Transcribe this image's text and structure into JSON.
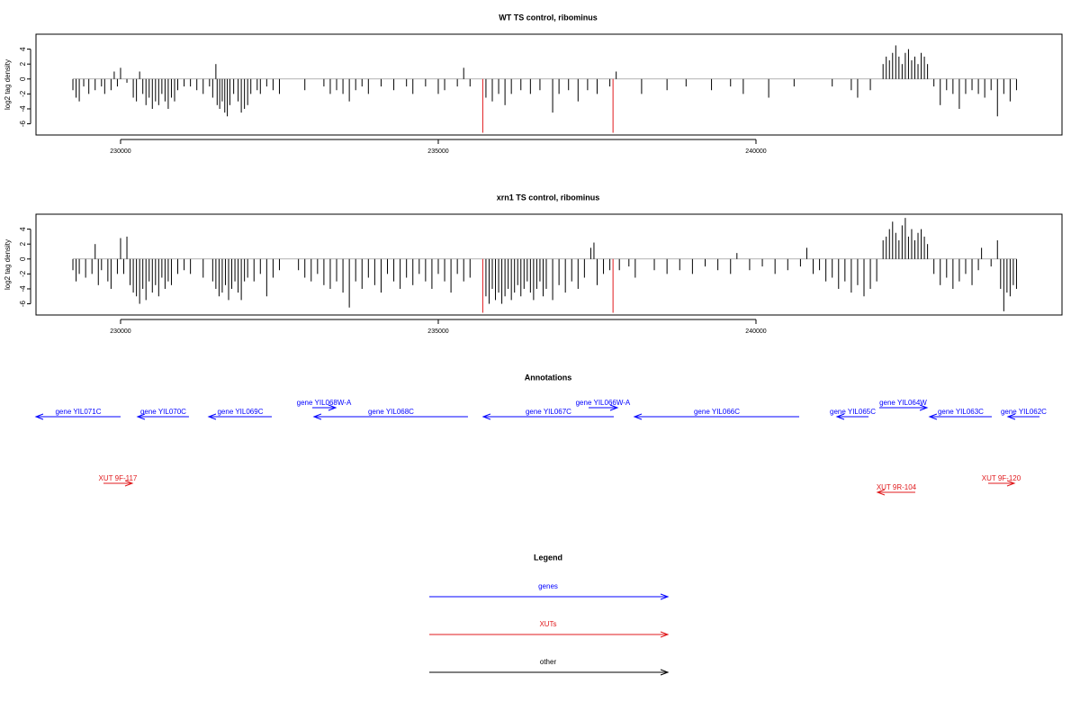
{
  "chart_data": [
    {
      "type": "bar",
      "title": "WT TS control, ribominus",
      "y_label": "log2 tag density",
      "xlim": [
        228669,
        244816
      ],
      "ylim": [
        -7.5,
        6
      ],
      "xticks": [
        230000,
        235000,
        240000
      ],
      "yticks": [
        -6,
        -4,
        -2,
        0,
        2,
        4
      ],
      "series": [
        {
          "color": "#000000",
          "x": [
            229250,
            229300,
            229350,
            229420,
            229500,
            229600,
            229700,
            229750,
            229850,
            229900,
            229950,
            230000,
            230100,
            230200,
            230250,
            230300,
            230350,
            230400,
            230450,
            230500,
            230550,
            230600,
            230650,
            230700,
            230750,
            230800,
            230850,
            230900,
            231000,
            231100,
            231200,
            231300,
            231400,
            231450,
            231500,
            231520,
            231560,
            231600,
            231640,
            231680,
            231720,
            231780,
            231850,
            231900,
            231950,
            232000,
            232050,
            232150,
            232200,
            232300,
            232400,
            232500,
            232900,
            233200,
            233300,
            233400,
            233500,
            233600,
            233700,
            233800,
            233900,
            234100,
            234300,
            234500,
            234600,
            234800,
            235000,
            235100,
            235300,
            235400,
            235500,
            235750,
            235850,
            235950,
            236050,
            236150,
            236300,
            236450,
            236600,
            236800,
            236900,
            237050,
            237200,
            237350,
            237500,
            237700,
            237800,
            238200,
            238600,
            238900,
            239300,
            239600,
            239800,
            240200,
            240600,
            241200,
            241500,
            241600,
            241800,
            242000,
            242050,
            242100,
            242150,
            242200,
            242250,
            242300,
            242350,
            242400,
            242450,
            242500,
            242550,
            242600,
            242650,
            242700,
            242800,
            242900,
            243000,
            243100,
            243200,
            243300,
            243400,
            243500,
            243600,
            243700,
            243800,
            243900,
            244000,
            244100
          ],
          "values": [
            -1.5,
            -2.5,
            -3,
            -1,
            -2,
            -1.5,
            -1,
            -2,
            -1.5,
            1,
            -1,
            1.5,
            -0.5,
            -2.5,
            -3,
            1,
            -2,
            -3.5,
            -2.5,
            -4,
            -3,
            -3.5,
            -2,
            -3,
            -4,
            -2.5,
            -3,
            -1.5,
            -1,
            -1,
            -1.5,
            -2,
            -1,
            -2.5,
            2,
            -3.5,
            -4,
            -3,
            -4.5,
            -5,
            -3.5,
            -2,
            -3,
            -4.5,
            -4,
            -3.5,
            -2,
            -1.5,
            -2,
            -1,
            -1.5,
            -2,
            -1.5,
            -1,
            -2,
            -1.5,
            -2,
            -3,
            -1.5,
            -1,
            -2,
            -1,
            -1.5,
            -1,
            -2,
            -1,
            -2,
            -1.5,
            -1,
            1.5,
            -1,
            -2.5,
            -3,
            -2,
            -3.5,
            -2,
            -1.5,
            -2,
            -1.5,
            -4.5,
            -2,
            -1.5,
            -3,
            -1.5,
            -2,
            -1,
            1,
            -2,
            -1.5,
            -1,
            -1.5,
            -1,
            -2,
            -2.5,
            -1,
            -1,
            -1.5,
            -2.5,
            -1.5,
            2,
            3,
            2.5,
            3.5,
            4.5,
            3,
            2,
            3.5,
            4,
            2.5,
            3,
            2,
            3.5,
            3,
            2,
            -1,
            -3.5,
            -1.5,
            -2,
            -4,
            -2,
            -1.5,
            -2,
            -2.5,
            -1.5,
            -5,
            -2,
            -3,
            -1.5
          ]
        },
        {
          "color": "#e0191c",
          "x": [
            235700,
            237750
          ],
          "values": [
            -7.2,
            -7.2
          ]
        }
      ]
    },
    {
      "type": "bar",
      "title": "xrn1 TS control, ribominus",
      "y_label": "log2 tag density",
      "xlim": [
        228669,
        244816
      ],
      "ylim": [
        -7.5,
        6
      ],
      "xticks": [
        230000,
        235000,
        240000
      ],
      "yticks": [
        -6,
        -4,
        -2,
        0,
        2,
        4
      ],
      "series": [
        {
          "color": "#000000",
          "x": [
            229250,
            229300,
            229350,
            229450,
            229550,
            229600,
            229650,
            229700,
            229800,
            229850,
            229950,
            230000,
            230050,
            230100,
            230150,
            230200,
            230250,
            230300,
            230350,
            230400,
            230450,
            230500,
            230550,
            230600,
            230650,
            230700,
            230750,
            230800,
            230900,
            231000,
            231100,
            231300,
            231450,
            231500,
            231550,
            231600,
            231650,
            231700,
            231750,
            231800,
            231850,
            231900,
            231950,
            232000,
            232100,
            232200,
            232300,
            232400,
            232500,
            232800,
            232900,
            233000,
            233100,
            233200,
            233300,
            233400,
            233500,
            233600,
            233700,
            233800,
            233900,
            234000,
            234100,
            234200,
            234300,
            234400,
            234500,
            234600,
            234700,
            234800,
            234900,
            235000,
            235100,
            235200,
            235300,
            235400,
            235500,
            235750,
            235800,
            235850,
            235900,
            235950,
            236000,
            236050,
            236100,
            236150,
            236200,
            236250,
            236300,
            236350,
            236400,
            236450,
            236500,
            236550,
            236600,
            236650,
            236700,
            236800,
            236900,
            237000,
            237100,
            237200,
            237300,
            237400,
            237450,
            237500,
            237600,
            237700,
            237850,
            238000,
            238100,
            238400,
            238600,
            238800,
            239000,
            239200,
            239400,
            239600,
            239700,
            239900,
            240100,
            240300,
            240500,
            240700,
            240800,
            240900,
            241000,
            241100,
            241200,
            241300,
            241400,
            241500,
            241600,
            241700,
            241800,
            241900,
            242000,
            242050,
            242100,
            242150,
            242200,
            242250,
            242300,
            242350,
            242400,
            242450,
            242500,
            242550,
            242600,
            242650,
            242700,
            242800,
            242900,
            243000,
            243100,
            243200,
            243300,
            243400,
            243500,
            243550,
            243700,
            243800,
            243850,
            243900,
            243950,
            244000,
            244050,
            244100
          ],
          "values": [
            -1.5,
            -3,
            -2,
            -2.5,
            -2,
            2,
            -3.5,
            -1.5,
            -3,
            -4,
            -2,
            2.8,
            -2,
            3,
            -3.5,
            -4.5,
            -5,
            -6,
            -4,
            -5.5,
            -3,
            -4.5,
            -3.5,
            -5,
            -2.5,
            -4,
            -3,
            -3.5,
            -2,
            -1.5,
            -2,
            -2.5,
            -3,
            -4,
            -5,
            -4.5,
            -3.5,
            -5.5,
            -4,
            -3,
            -4.5,
            -5.5,
            -3,
            -2.5,
            -3,
            -2,
            -5,
            -2.5,
            -1.5,
            -1.5,
            -2.5,
            -3,
            -2,
            -3.5,
            -4,
            -3,
            -4.5,
            -6.5,
            -3,
            -4,
            -2.5,
            -3.5,
            -4.5,
            -2,
            -3,
            -4,
            -2.5,
            -3.5,
            -2,
            -3,
            -4,
            -2,
            -3,
            -4.5,
            -2,
            -3,
            -2.5,
            -5,
            -6,
            -4,
            -5.5,
            -4.5,
            -6,
            -5,
            -4,
            -5.5,
            -4.5,
            -3.5,
            -5,
            -4,
            -3,
            -4.5,
            -5.5,
            -4,
            -3,
            -5,
            -4,
            -5.5,
            -3.5,
            -4.5,
            -3,
            -4,
            -2.5,
            1.5,
            2.2,
            -3.5,
            -2,
            -1.5,
            -1.5,
            -1,
            -2.5,
            -1.5,
            -2,
            -1.5,
            -2,
            -1,
            -1.5,
            -2,
            0.8,
            -1.5,
            -1,
            -2,
            -1.5,
            -1,
            1.5,
            -2,
            -1.5,
            -3,
            -2.5,
            -4,
            -3,
            -4.5,
            -3.5,
            -5,
            -4,
            -3,
            2.5,
            3,
            4,
            5,
            3.5,
            2.5,
            4.5,
            5.5,
            3,
            4,
            2.5,
            3.5,
            4,
            3,
            2,
            -2,
            -3.5,
            -2.5,
            -4,
            -3,
            -2,
            -3.5,
            -1.5,
            1.5,
            -1,
            2.5,
            -4,
            -7,
            -4.5,
            -5,
            -3.5,
            -4
          ]
        },
        {
          "color": "#e0191c",
          "x": [
            235700,
            237750
          ],
          "values": [
            -7.2,
            -7.2
          ]
        }
      ]
    }
  ],
  "annotations": {
    "title": "Annotations",
    "features": [
      {
        "label": "gene YIL071C",
        "start": 228669,
        "end": 230000,
        "strand": "-",
        "color": "#0000ff"
      },
      {
        "label": "gene YIL070C",
        "start": 230269,
        "end": 231076,
        "strand": "-",
        "color": "#0000ff"
      },
      {
        "label": "gene YIL069C",
        "start": 231388,
        "end": 232380,
        "strand": "-",
        "color": "#0000ff"
      },
      {
        "label": "gene YIL068W-A",
        "start": 233017,
        "end": 233385,
        "strand": "+",
        "color": "#0000ff"
      },
      {
        "label": "gene YIL068C",
        "start": 233045,
        "end": 235467,
        "strand": "-",
        "color": "#0000ff"
      },
      {
        "label": "gene YIL067C",
        "start": 235708,
        "end": 237762,
        "strand": "-",
        "color": "#0000ff"
      },
      {
        "label": "gene YIL066W-A",
        "start": 237365,
        "end": 237818,
        "strand": "+",
        "color": "#0000ff"
      },
      {
        "label": "gene YIL066C",
        "start": 238088,
        "end": 240680,
        "strand": "-",
        "color": "#0000ff"
      },
      {
        "label": "gene YIL065C",
        "start": 241275,
        "end": 241771,
        "strand": "-",
        "color": "#0000ff"
      },
      {
        "label": "gene YIL064W",
        "start": 241940,
        "end": 242691,
        "strand": "+",
        "color": "#0000ff"
      },
      {
        "label": "gene YIL063C",
        "start": 242733,
        "end": 243711,
        "strand": "-",
        "color": "#0000ff"
      },
      {
        "label": "gene YIL062C",
        "start": 243966,
        "end": 244461,
        "strand": "-",
        "color": "#0000ff"
      },
      {
        "label": "XUT 9F-117",
        "start": 229731,
        "end": 230184,
        "strand": "+",
        "color": "#e0191c"
      },
      {
        "label": "XUT 9R-104",
        "start": 241912,
        "end": 242507,
        "strand": "-",
        "color": "#e0191c"
      },
      {
        "label": "XUT 9F-120",
        "start": 243654,
        "end": 244065,
        "strand": "+",
        "color": "#e0191c"
      }
    ]
  },
  "legend": {
    "title": "Legend",
    "entries": [
      {
        "label": "genes",
        "color": "#0000ff"
      },
      {
        "label": "XUTs",
        "color": "#e0191c"
      },
      {
        "label": "other",
        "color": "#000000"
      }
    ]
  }
}
